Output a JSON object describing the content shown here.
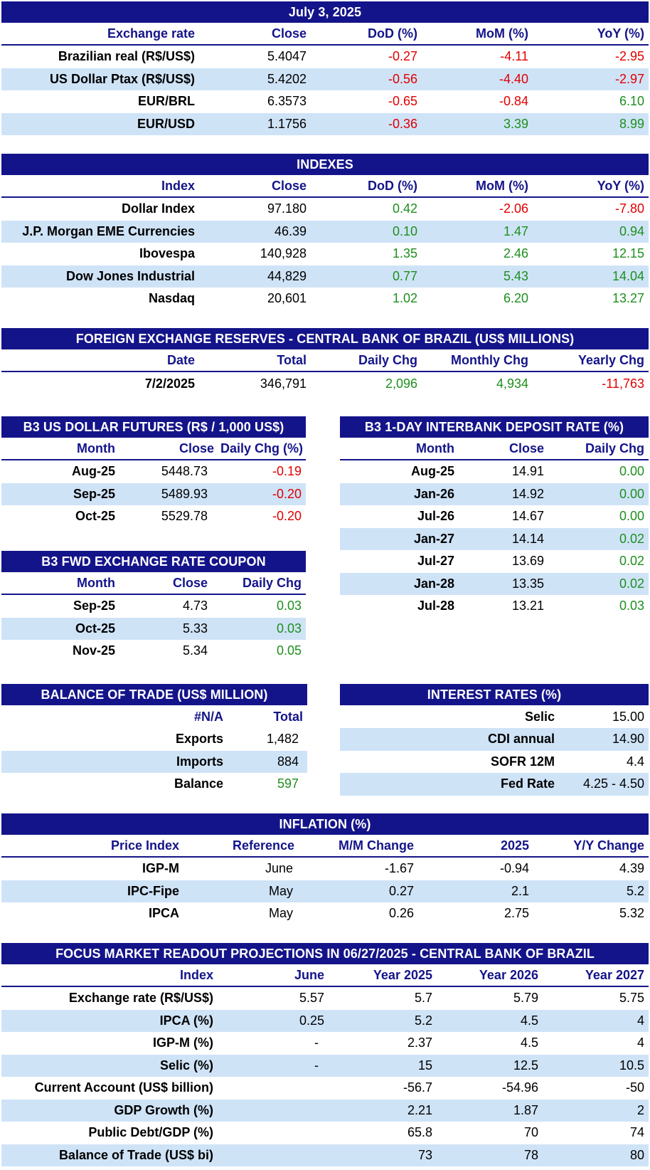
{
  "fx": {
    "title": "July 3, 2025",
    "headers": [
      "Exchange rate",
      "Close",
      "DoD (%)",
      "MoM (%)",
      "YoY (%)"
    ],
    "rows": [
      {
        "label": "Brazilian real (R$/US$)",
        "close": "5.4047",
        "dod": "-0.27",
        "mom": "-4.11",
        "yoy": "-2.95"
      },
      {
        "label": "US Dollar Ptax (R$/US$)",
        "close": "5.4202",
        "dod": "-0.56",
        "mom": "-4.40",
        "yoy": "-2.97"
      },
      {
        "label": "EUR/BRL",
        "close": "6.3573",
        "dod": "-0.65",
        "mom": "-0.84",
        "yoy": "6.10"
      },
      {
        "label": "EUR/USD",
        "close": "1.1756",
        "dod": "-0.36",
        "mom": "3.39",
        "yoy": "8.99"
      }
    ]
  },
  "indexes": {
    "title": "INDEXES",
    "headers": [
      "Index",
      "Close",
      "DoD (%)",
      "MoM (%)",
      "YoY (%)"
    ],
    "rows": [
      {
        "label": "Dollar Index",
        "close": "97.180",
        "dod": "0.42",
        "mom": "-2.06",
        "yoy": "-7.80"
      },
      {
        "label": "J.P. Morgan EME Currencies",
        "close": "46.39",
        "dod": "0.10",
        "mom": "1.47",
        "yoy": "0.94"
      },
      {
        "label": "Ibovespa",
        "close": "140,928",
        "dod": "1.35",
        "mom": "2.46",
        "yoy": "12.15"
      },
      {
        "label": "Dow Jones Industrial",
        "close": "44,829",
        "dod": "0.77",
        "mom": "5.43",
        "yoy": "14.04"
      },
      {
        "label": "Nasdaq",
        "close": "20,601",
        "dod": "1.02",
        "mom": "6.20",
        "yoy": "13.27"
      }
    ]
  },
  "reserves": {
    "title": "FOREIGN EXCHANGE RESERVES - CENTRAL BANK OF BRAZIL (US$ MILLIONS)",
    "headers": [
      "Date",
      "Total",
      "Daily Chg",
      "Monthly Chg",
      "Yearly Chg"
    ],
    "rows": [
      {
        "label": "7/2/2025",
        "total": "346,791",
        "daily": "2,096",
        "monthly": "4,934",
        "yearly": "-11,763"
      }
    ]
  },
  "futures": {
    "title": "B3 US DOLLAR FUTURES (R$ / 1,000 US$)",
    "headers": [
      "Month",
      "Close",
      "Daily Chg (%)"
    ],
    "rows": [
      {
        "label": "Aug-25",
        "close": "5448.73",
        "chg": "-0.19"
      },
      {
        "label": "Sep-25",
        "close": "5489.93",
        "chg": "-0.20"
      },
      {
        "label": "Oct-25",
        "close": "5529.78",
        "chg": "-0.20"
      }
    ]
  },
  "interbank": {
    "title": "B3 1-DAY INTERBANK DEPOSIT RATE (%)",
    "headers": [
      "Month",
      "Close",
      "Daily Chg"
    ],
    "rows": [
      {
        "label": "Aug-25",
        "close": "14.91",
        "chg": "0.00"
      },
      {
        "label": "Jan-26",
        "close": "14.92",
        "chg": "0.00"
      },
      {
        "label": "Jul-26",
        "close": "14.67",
        "chg": "0.00"
      },
      {
        "label": "Jan-27",
        "close": "14.14",
        "chg": "0.02"
      },
      {
        "label": "Jul-27",
        "close": "13.69",
        "chg": "0.02"
      },
      {
        "label": "Jan-28",
        "close": "13.35",
        "chg": "0.02"
      },
      {
        "label": "Jul-28",
        "close": "13.21",
        "chg": "0.03"
      }
    ]
  },
  "coupon": {
    "title": "B3 FWD EXCHANGE RATE COUPON",
    "headers": [
      "Month",
      "Close",
      "Daily Chg"
    ],
    "rows": [
      {
        "label": "Sep-25",
        "close": "4.73",
        "chg": "0.03"
      },
      {
        "label": "Oct-25",
        "close": "5.33",
        "chg": "0.03"
      },
      {
        "label": "Nov-25",
        "close": "5.34",
        "chg": "0.05"
      }
    ]
  },
  "trade": {
    "title": "BALANCE OF TRADE (US$ MILLION)",
    "headers": [
      "#N/A",
      "Total"
    ],
    "rows": [
      {
        "label": "Exports",
        "total": "1,482"
      },
      {
        "label": "Imports",
        "total": "884"
      },
      {
        "label": "Balance",
        "total": "597"
      }
    ]
  },
  "rates": {
    "title": "INTEREST RATES (%)",
    "rows": [
      {
        "label": "Selic",
        "value": "15.00"
      },
      {
        "label": "CDI annual",
        "value": "14.90"
      },
      {
        "label": "SOFR 12M",
        "value": "4.4"
      },
      {
        "label": "Fed Rate",
        "value": "4.25 - 4.50"
      }
    ]
  },
  "inflation": {
    "title": "INFLATION (%)",
    "headers": [
      "Price Index",
      "Reference",
      "M/M Change",
      "2025",
      "Y/Y Change"
    ],
    "rows": [
      {
        "label": "IGP-M",
        "ref": "June",
        "mm": "-1.67",
        "y2025": "-0.94",
        "yy": "4.39"
      },
      {
        "label": "IPC-Fipe",
        "ref": "May",
        "mm": "0.27",
        "y2025": "2.1",
        "yy": "5.2"
      },
      {
        "label": "IPCA",
        "ref": "May",
        "mm": "0.26",
        "y2025": "2.75",
        "yy": "5.32"
      }
    ]
  },
  "focus": {
    "title": "FOCUS MARKET READOUT PROJECTIONS IN 06/27/2025 - CENTRAL BANK OF BRAZIL",
    "headers": [
      "Index",
      "June",
      "Year 2025",
      "Year 2026",
      "Year 2027"
    ],
    "rows": [
      {
        "label": "Exchange rate (R$/US$)",
        "june": "5.57",
        "y2025": "5.7",
        "y2026": "5.79",
        "y2027": "5.75"
      },
      {
        "label": "IPCA (%)",
        "june": "0.25",
        "y2025": "5.2",
        "y2026": "4.5",
        "y2027": "4"
      },
      {
        "label": "IGP-M (%)",
        "june": "-",
        "y2025": "2.37",
        "y2026": "4.5",
        "y2027": "4"
      },
      {
        "label": "Selic (%)",
        "june": "-",
        "y2025": "15",
        "y2026": "12.5",
        "y2027": "10.5"
      },
      {
        "label": "Current Account (US$ billion)",
        "june": "",
        "y2025": "-56.7",
        "y2026": "-54.96",
        "y2027": "-50"
      },
      {
        "label": "GDP Growth (%)",
        "june": "",
        "y2025": "2.21",
        "y2026": "1.87",
        "y2027": "2"
      },
      {
        "label": "Public Debt/GDP (%)",
        "june": "",
        "y2025": "65.8",
        "y2026": "70",
        "y2027": "74"
      },
      {
        "label": "Balance of Trade (US$ bi)",
        "june": "",
        "y2025": "73",
        "y2026": "78",
        "y2027": "80"
      }
    ]
  },
  "colors": {
    "header_bg": "#14148a",
    "alt_row": "#cfe3f7",
    "negative": "#e00000",
    "positive": "#1d8f1d"
  }
}
